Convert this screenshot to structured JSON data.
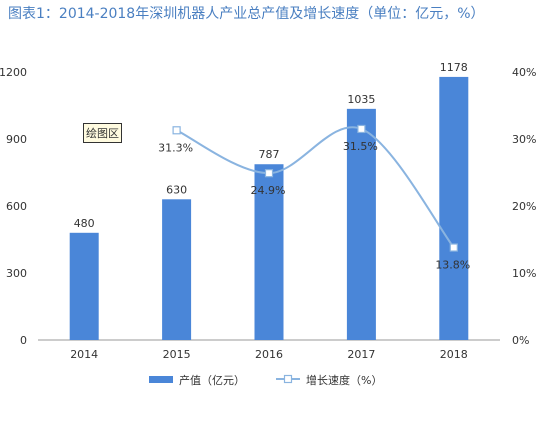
{
  "title": "图表1：2014-2018年深圳机器人产业总产值及增长速度（单位：亿元，%）",
  "plot_area_label": "绘图区",
  "colors": {
    "bar": "#4a86d8",
    "line": "#8ab4e0",
    "title": "#4a7fc1"
  },
  "chart_data": {
    "type": "bar",
    "categories": [
      "2014",
      "2015",
      "2016",
      "2017",
      "2018"
    ],
    "series": [
      {
        "name": "产值（亿元）",
        "type": "bar",
        "axis": "left",
        "values": [
          480,
          630,
          787,
          1035,
          1178
        ],
        "labels": [
          "480",
          "630",
          "787",
          "1035",
          "1178"
        ]
      },
      {
        "name": "增长速度（%）",
        "type": "line",
        "axis": "right",
        "values": [
          null,
          31.3,
          24.9,
          31.5,
          13.8
        ],
        "labels": [
          "",
          "31.3%",
          "24.9%",
          "31.5%",
          "13.8%"
        ]
      }
    ],
    "y_left": {
      "range": [
        0,
        1200
      ],
      "ticks": [
        0,
        300,
        600,
        900,
        1200
      ]
    },
    "y_right": {
      "range": [
        0,
        40
      ],
      "ticks": [
        "0%",
        "10%",
        "20%",
        "30%",
        "40%"
      ]
    },
    "grid": false,
    "legend": "bottom"
  }
}
